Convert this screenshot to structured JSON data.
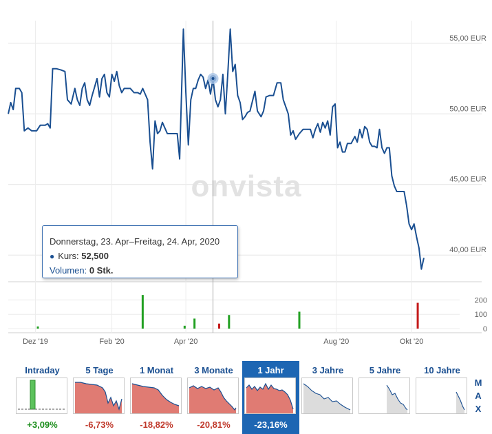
{
  "chart_data": {
    "type": "line",
    "xlabel": "",
    "ylabel": "",
    "y_ticks": [
      "55,00 EUR",
      "50,00 EUR",
      "45,00 EUR",
      "40,00 EUR"
    ],
    "y_tick_values": [
      55,
      50,
      45,
      40
    ],
    "ylim": [
      38.4,
      56.6
    ],
    "x_ticks": [
      "Dez '19",
      "Feb '20",
      "Apr '20",
      "Aug '20",
      "Okt '20"
    ],
    "x_tick_dates": [
      "2019-12-01",
      "2020-02-01",
      "2020-04-01",
      "2020-08-01",
      "2020-10-01"
    ],
    "xlim": [
      "2019-11-09",
      "2020-11-09"
    ],
    "grid": true,
    "watermark": "onvista",
    "line_color": "#1a4f91",
    "price_series": {
      "name": "Kurs",
      "points": [
        [
          "2019-11-09",
          50.0
        ],
        [
          "2019-11-11",
          50.8
        ],
        [
          "2019-11-13",
          50.3
        ],
        [
          "2019-11-15",
          51.8
        ],
        [
          "2019-11-18",
          51.8
        ],
        [
          "2019-11-20",
          51.5
        ],
        [
          "2019-11-22",
          48.8
        ],
        [
          "2019-11-25",
          49.0
        ],
        [
          "2019-11-28",
          48.8
        ],
        [
          "2019-12-02",
          48.8
        ],
        [
          "2019-12-05",
          49.2
        ],
        [
          "2019-12-09",
          49.2
        ],
        [
          "2019-12-11",
          49.3
        ],
        [
          "2019-12-13",
          49.0
        ],
        [
          "2019-12-15",
          53.2
        ],
        [
          "2019-12-18",
          53.2
        ],
        [
          "2019-12-22",
          53.1
        ],
        [
          "2019-12-25",
          53.0
        ],
        [
          "2019-12-27",
          51.0
        ],
        [
          "2019-12-30",
          50.7
        ],
        [
          "2020-01-02",
          51.8
        ],
        [
          "2020-01-04",
          51.0
        ],
        [
          "2020-01-06",
          50.6
        ],
        [
          "2020-01-08",
          51.8
        ],
        [
          "2020-01-10",
          52.2
        ],
        [
          "2020-01-12",
          51.0
        ],
        [
          "2020-01-14",
          50.6
        ],
        [
          "2020-01-16",
          51.3
        ],
        [
          "2020-01-18",
          51.9
        ],
        [
          "2020-01-20",
          52.5
        ],
        [
          "2020-01-22",
          51.2
        ],
        [
          "2020-01-24",
          52.5
        ],
        [
          "2020-01-26",
          52.8
        ],
        [
          "2020-01-28",
          51.5
        ],
        [
          "2020-01-30",
          51.2
        ],
        [
          "2020-02-01",
          52.8
        ],
        [
          "2020-02-03",
          52.3
        ],
        [
          "2020-02-05",
          53.0
        ],
        [
          "2020-02-07",
          52.0
        ],
        [
          "2020-02-09",
          51.5
        ],
        [
          "2020-02-11",
          51.8
        ],
        [
          "2020-02-13",
          51.8
        ],
        [
          "2020-02-16",
          51.8
        ],
        [
          "2020-02-19",
          51.5
        ],
        [
          "2020-02-22",
          51.5
        ],
        [
          "2020-02-24",
          51.4
        ],
        [
          "2020-02-26",
          51.8
        ],
        [
          "2020-02-28",
          51.4
        ],
        [
          "2020-03-01",
          51.0
        ],
        [
          "2020-03-03",
          48.0
        ],
        [
          "2020-03-05",
          46.1
        ],
        [
          "2020-03-07",
          49.5
        ],
        [
          "2020-03-09",
          48.6
        ],
        [
          "2020-03-11",
          48.8
        ],
        [
          "2020-03-13",
          49.4
        ],
        [
          "2020-03-15",
          49.0
        ],
        [
          "2020-03-17",
          48.6
        ],
        [
          "2020-03-20",
          48.6
        ],
        [
          "2020-03-23",
          48.6
        ],
        [
          "2020-03-25",
          48.6
        ],
        [
          "2020-03-27",
          46.8
        ],
        [
          "2020-03-30",
          56.0
        ],
        [
          "2020-04-01",
          51.5
        ],
        [
          "2020-04-03",
          47.8
        ],
        [
          "2020-04-05",
          51.0
        ],
        [
          "2020-04-07",
          51.8
        ],
        [
          "2020-04-09",
          51.8
        ],
        [
          "2020-04-11",
          52.4
        ],
        [
          "2020-04-13",
          52.8
        ],
        [
          "2020-04-15",
          52.6
        ],
        [
          "2020-04-17",
          51.8
        ],
        [
          "2020-04-19",
          52.4
        ],
        [
          "2020-04-21",
          51.4
        ],
        [
          "2020-04-23",
          52.5
        ],
        [
          "2020-04-25",
          51.0
        ],
        [
          "2020-04-27",
          50.5
        ],
        [
          "2020-04-29",
          51.0
        ],
        [
          "2020-05-01",
          52.8
        ],
        [
          "2020-05-03",
          50.0
        ],
        [
          "2020-05-05",
          52.8
        ],
        [
          "2020-05-07",
          56.0
        ],
        [
          "2020-05-09",
          53.0
        ],
        [
          "2020-05-11",
          53.5
        ],
        [
          "2020-05-13",
          51.3
        ],
        [
          "2020-05-15",
          50.8
        ],
        [
          "2020-05-17",
          49.6
        ],
        [
          "2020-05-19",
          49.8
        ],
        [
          "2020-05-21",
          50.1
        ],
        [
          "2020-05-23",
          50.2
        ],
        [
          "2020-05-25",
          50.9
        ],
        [
          "2020-05-27",
          51.6
        ],
        [
          "2020-05-29",
          50.2
        ],
        [
          "2020-06-01",
          49.8
        ],
        [
          "2020-06-03",
          50.2
        ],
        [
          "2020-06-05",
          51.2
        ],
        [
          "2020-06-08",
          51.3
        ],
        [
          "2020-06-11",
          51.3
        ],
        [
          "2020-06-14",
          52.2
        ],
        [
          "2020-06-17",
          52.2
        ],
        [
          "2020-06-19",
          51.0
        ],
        [
          "2020-06-21",
          50.5
        ],
        [
          "2020-06-23",
          50.0
        ],
        [
          "2020-06-25",
          48.5
        ],
        [
          "2020-06-27",
          48.8
        ],
        [
          "2020-06-29",
          48.2
        ],
        [
          "2020-07-02",
          48.6
        ],
        [
          "2020-07-05",
          48.9
        ],
        [
          "2020-07-08",
          48.9
        ],
        [
          "2020-07-11",
          48.9
        ],
        [
          "2020-07-13",
          48.3
        ],
        [
          "2020-07-15",
          48.9
        ],
        [
          "2020-07-17",
          49.3
        ],
        [
          "2020-07-19",
          48.7
        ],
        [
          "2020-07-21",
          49.4
        ],
        [
          "2020-07-23",
          49.0
        ],
        [
          "2020-07-25",
          49.5
        ],
        [
          "2020-07-27",
          48.5
        ],
        [
          "2020-07-29",
          50.5
        ],
        [
          "2020-07-31",
          50.7
        ],
        [
          "2020-08-02",
          47.6
        ],
        [
          "2020-08-04",
          48.0
        ],
        [
          "2020-08-06",
          47.3
        ],
        [
          "2020-08-08",
          47.3
        ],
        [
          "2020-08-10",
          47.9
        ],
        [
          "2020-08-13",
          47.9
        ],
        [
          "2020-08-16",
          48.4
        ],
        [
          "2020-08-18",
          48.0
        ],
        [
          "2020-08-20",
          48.9
        ],
        [
          "2020-08-22",
          48.3
        ],
        [
          "2020-08-24",
          49.1
        ],
        [
          "2020-08-26",
          48.9
        ],
        [
          "2020-08-28",
          48.0
        ],
        [
          "2020-08-30",
          47.7
        ],
        [
          "2020-09-01",
          47.7
        ],
        [
          "2020-09-03",
          47.6
        ],
        [
          "2020-09-05",
          48.9
        ],
        [
          "2020-09-07",
          47.6
        ],
        [
          "2020-09-09",
          47.2
        ],
        [
          "2020-09-11",
          47.6
        ],
        [
          "2020-09-13",
          47.6
        ],
        [
          "2020-09-15",
          45.6
        ],
        [
          "2020-09-17",
          44.9
        ],
        [
          "2020-09-19",
          44.5
        ],
        [
          "2020-09-22",
          44.5
        ],
        [
          "2020-09-25",
          44.5
        ],
        [
          "2020-09-27",
          43.5
        ],
        [
          "2020-09-29",
          42.2
        ],
        [
          "2020-10-01",
          41.8
        ],
        [
          "2020-10-03",
          42.2
        ],
        [
          "2020-10-05",
          41.3
        ],
        [
          "2020-10-07",
          40.5
        ],
        [
          "2020-10-09",
          39.0
        ],
        [
          "2020-10-11",
          39.8
        ]
      ]
    },
    "volume_ticks": [
      "200",
      "100",
      "0"
    ],
    "volume_tick_values": [
      200,
      100,
      0
    ],
    "volume_max": 250,
    "volume_bars": [
      {
        "date": "2019-12-03",
        "value": 15,
        "color": "#22a022"
      },
      {
        "date": "2020-02-26",
        "value": 235,
        "color": "#22a022"
      },
      {
        "date": "2020-03-31",
        "value": 20,
        "color": "#22a022"
      },
      {
        "date": "2020-04-08",
        "value": 70,
        "color": "#22a022"
      },
      {
        "date": "2020-04-28",
        "value": 35,
        "color": "#c41a1a"
      },
      {
        "date": "2020-05-06",
        "value": 95,
        "color": "#22a022"
      },
      {
        "date": "2020-07-02",
        "value": 118,
        "color": "#22a022"
      },
      {
        "date": "2020-10-06",
        "value": 180,
        "color": "#c41a1a"
      }
    ],
    "crosshair_date": "2020-04-23",
    "highlight_value": 52.5
  },
  "tooltip": {
    "date_text": "Donnerstag, 23. Apr–Freitag, 24. Apr, 2020",
    "series_label": "Kurs:",
    "series_value": "52,500",
    "volume_label": "Volumen:",
    "volume_value": "0 Stk."
  },
  "periods": [
    {
      "label": "Intraday",
      "change": "+3,09%",
      "direction": "pos",
      "active": false
    },
    {
      "label": "5 Tage",
      "change": "-6,73%",
      "direction": "neg",
      "active": false
    },
    {
      "label": "1 Monat",
      "change": "-18,82%",
      "direction": "neg",
      "active": false
    },
    {
      "label": "3 Monate",
      "change": "-20,81%",
      "direction": "neg",
      "active": false
    },
    {
      "label": "1 Jahr",
      "change": "-23,16%",
      "direction": "neg",
      "active": true
    },
    {
      "label": "3 Jahre",
      "change": "",
      "direction": "",
      "active": false
    },
    {
      "label": "5 Jahre",
      "change": "",
      "direction": "",
      "active": false
    },
    {
      "label": "10 Jahre",
      "change": "",
      "direction": "",
      "active": false
    }
  ],
  "max_label": [
    "M",
    "A",
    "X"
  ],
  "colors": {
    "line": "#1a4f91",
    "active_tab": "#1d66b3",
    "positive": "#1e8f1e",
    "negative": "#c0392b",
    "thumb_fill_neg": "#e07b73",
    "thumb_fill_grey": "#dcdcdc"
  }
}
